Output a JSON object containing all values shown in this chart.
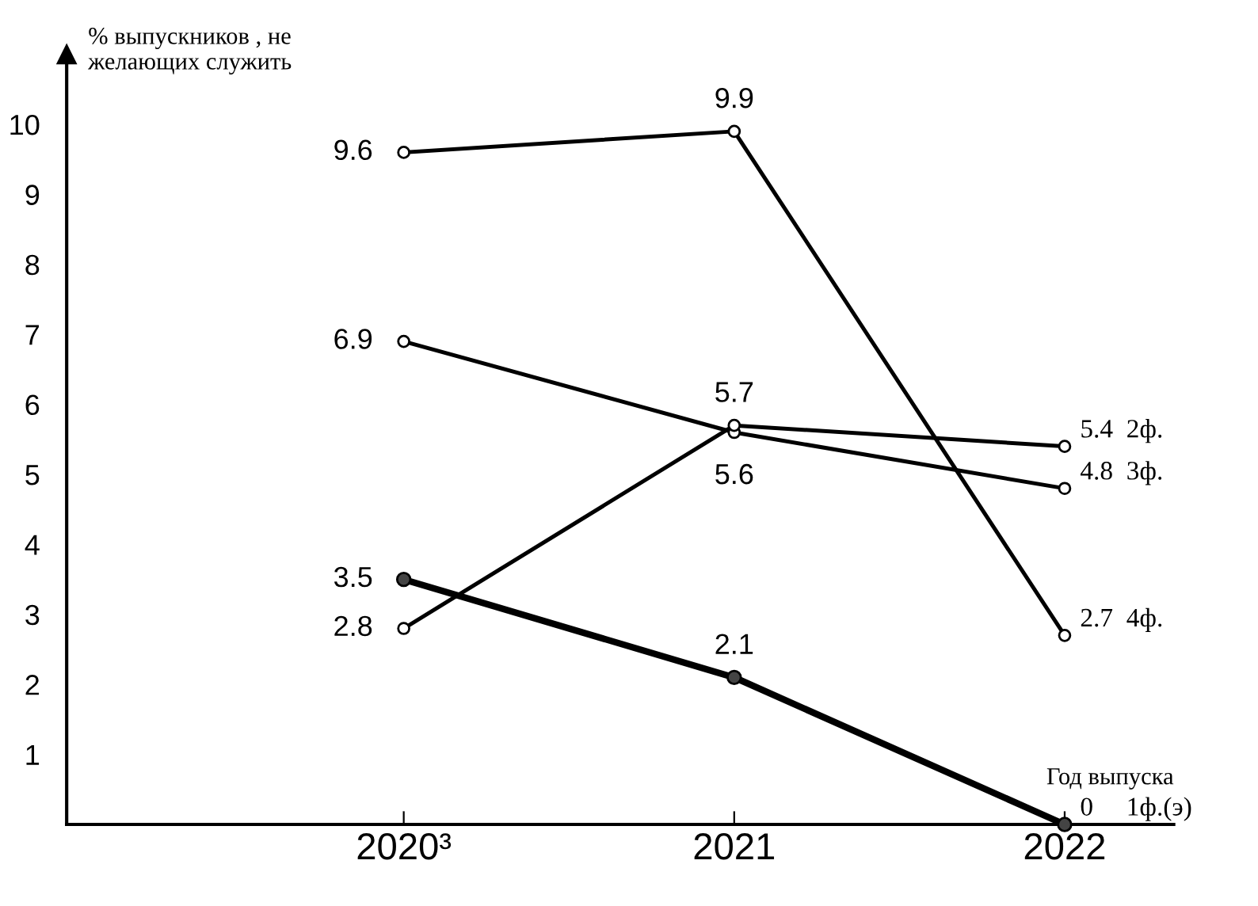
{
  "chart_data": {
    "type": "line",
    "ylabel": "% выпускников , не\nжелающих служить",
    "xlabel": "Год выпуска",
    "categories": [
      "2020³",
      "2021",
      "2022"
    ],
    "series": [
      {
        "name": "4ф.",
        "color": "#000000",
        "values": [
          9.6,
          9.9,
          2.7
        ]
      },
      {
        "name": "3ф.",
        "color": "#000000",
        "values": [
          6.9,
          5.6,
          4.8
        ]
      },
      {
        "name": "2ф.",
        "color": "#000000",
        "values": [
          2.8,
          5.7,
          5.4
        ]
      },
      {
        "name": "1ф.(э)",
        "color": "#000000",
        "values": [
          3.5,
          2.1,
          0
        ]
      }
    ],
    "ylim": [
      0,
      11
    ],
    "yticks": [
      1,
      2,
      3,
      4,
      5,
      6,
      7,
      8,
      9,
      10
    ],
    "data_labels": true,
    "marker": "circle",
    "line_style": "solid",
    "grid": false
  }
}
